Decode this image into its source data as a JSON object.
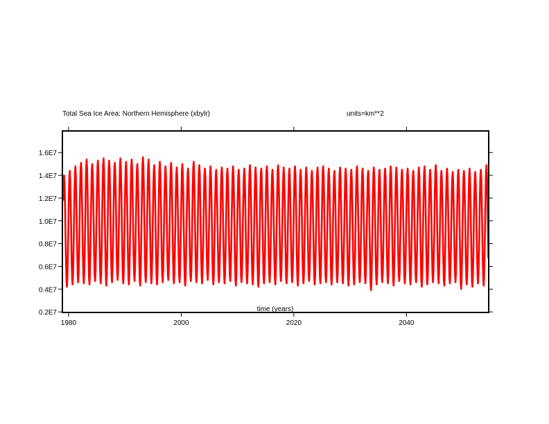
{
  "chart_data": {
    "type": "line",
    "title": "Total Sea Ice Area: Northern Hemisphere (xbylr)",
    "units_label": "units=km**2",
    "xlabel": "time (years)",
    "ylabel": "",
    "xlim": [
      1978.9,
      2054.6
    ],
    "ylim": [
      1950000,
      17900000
    ],
    "x_ticks": [
      1980,
      2000,
      2020,
      2040
    ],
    "x_tick_labels": [
      "1980",
      "2000",
      "2020",
      "2040"
    ],
    "y_ticks": [
      2000000,
      4000000,
      6000000,
      8000000,
      10000000,
      12000000,
      14000000,
      16000000
    ],
    "y_tick_labels": [
      "0.2E7",
      "0.4E7",
      "0.6E7",
      "0.8E7",
      "1.0E7",
      "1.2E7",
      "1.4E7",
      "1.6E7"
    ],
    "grid": false,
    "series": [
      {
        "color": "#ff0000",
        "cycle": "annual",
        "years": [
          1979,
          1980,
          1981,
          1982,
          1983,
          1984,
          1985,
          1986,
          1987,
          1988,
          1989,
          1990,
          1991,
          1992,
          1993,
          1994,
          1995,
          1996,
          1997,
          1998,
          1999,
          2000,
          2001,
          2002,
          2003,
          2004,
          2005,
          2006,
          2007,
          2008,
          2009,
          2010,
          2011,
          2012,
          2013,
          2014,
          2015,
          2016,
          2017,
          2018,
          2019,
          2020,
          2021,
          2022,
          2023,
          2024,
          2025,
          2026,
          2027,
          2028,
          2029,
          2030,
          2031,
          2032,
          2033,
          2034,
          2035,
          2036,
          2037,
          2038,
          2039,
          2040,
          2041,
          2042,
          2043,
          2044,
          2045,
          2046,
          2047,
          2048,
          2049,
          2050,
          2051,
          2052,
          2053,
          2054
        ],
        "annual_max": [
          14000000,
          14400000,
          14800000,
          15100000,
          15400000,
          15000000,
          15300000,
          15500000,
          15300000,
          15100000,
          15500000,
          15200000,
          15400000,
          15000000,
          15600000,
          15400000,
          14900000,
          15200000,
          14800000,
          15100000,
          14700000,
          15000000,
          14600000,
          15200000,
          14900000,
          14600000,
          14800000,
          14500000,
          14700000,
          14600000,
          14800000,
          14500000,
          14600000,
          14900000,
          14700000,
          14600000,
          14800000,
          14500000,
          14900000,
          14700000,
          14600000,
          14800000,
          14500000,
          14700000,
          14400000,
          14700000,
          14800000,
          14600000,
          14400000,
          14700000,
          14600000,
          14500000,
          14800000,
          14600000,
          14400000,
          14700000,
          14500000,
          14600000,
          14800000,
          14700000,
          14500000,
          14600000,
          14400000,
          14700000,
          14800000,
          14500000,
          14900000,
          14400000,
          14600000,
          14300000,
          14500000,
          14400000,
          14600000,
          14300000,
          14500000,
          14900000
        ],
        "annual_min": [
          4200000,
          4400000,
          4600000,
          4500000,
          4400000,
          4700000,
          4500000,
          4300000,
          4600000,
          4800000,
          4500000,
          4400000,
          4700000,
          4300000,
          4600000,
          4500000,
          4400000,
          4600000,
          4800000,
          4500000,
          4600000,
          4300000,
          4700000,
          4600000,
          4500000,
          4800000,
          4400000,
          4600000,
          4500000,
          4700000,
          4300000,
          4600000,
          4500000,
          4400000,
          4200000,
          4500000,
          4600000,
          4400000,
          4700000,
          4500000,
          4600000,
          4300000,
          4500000,
          4700000,
          4400000,
          4500000,
          4600000,
          4400000,
          4600000,
          4500000,
          4300000,
          4400000,
          4600000,
          4500000,
          3900000,
          4400000,
          4600000,
          4500000,
          4300000,
          4700000,
          4500000,
          4400000,
          4600000,
          4200000,
          4400000,
          4600000,
          4500000,
          4300000,
          4500000,
          4600000,
          4000000,
          4400000,
          4200000,
          4500000,
          4300000,
          4300000
        ]
      }
    ]
  }
}
